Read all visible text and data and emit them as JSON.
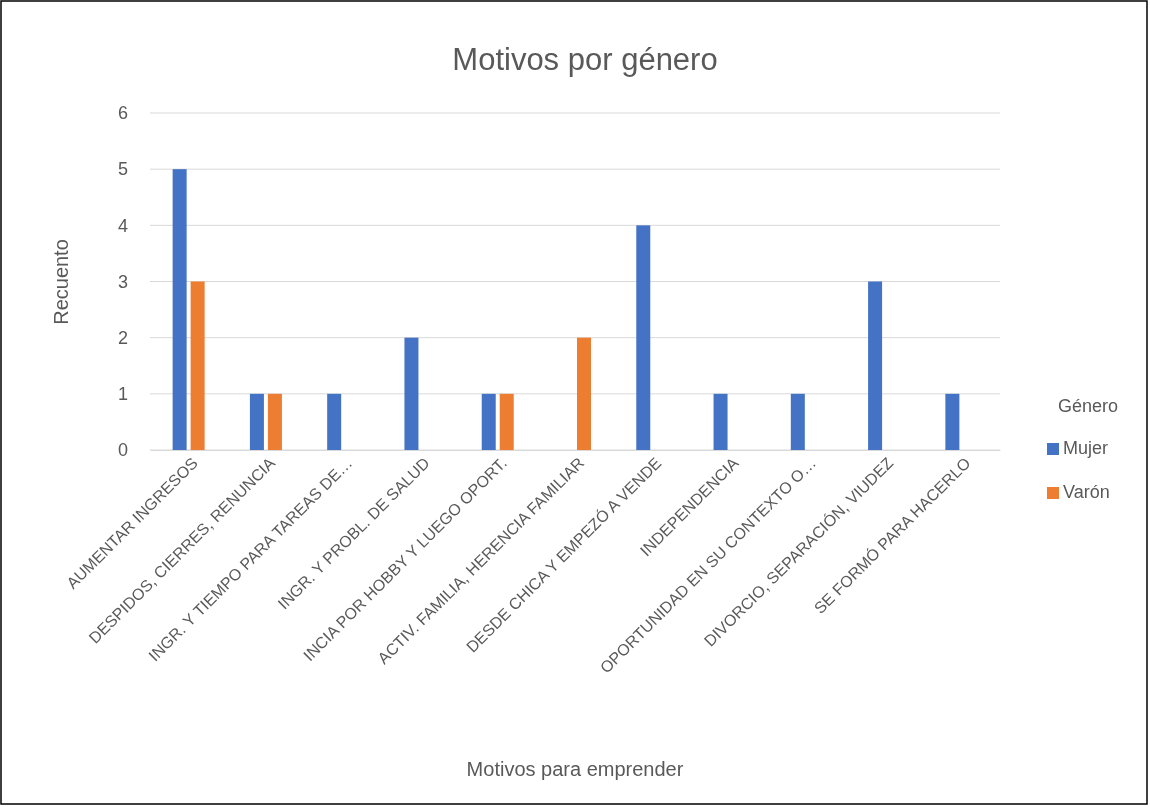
{
  "chart_data": {
    "type": "bar",
    "title": "Motivos por género",
    "xlabel": "Motivos para emprender",
    "ylabel": "Recuento",
    "legend_title": "Género",
    "categories": [
      "AUMENTAR INGRESOS",
      "DESPIDOS, CIERRES, RENUNCIA",
      "INGR. Y TIEMPO PARA TAREAS DE…",
      "INGR. Y PROBL. DE SALUD",
      "INCIA POR HOBBY Y LUEGO OPORT.",
      "ACTIV. FAMILIA, HERENCIA FAMILIAR",
      "DESDE CHICA Y EMPEZÓ A VENDE",
      "INDEPENDENCIA",
      "OPORTUNIDAD EN SU CONTEXTO O…",
      "DIVORCIO, SEPARACIÓN, VIUDEZ",
      "SE FORMÓ PARA HACERLO"
    ],
    "series": [
      {
        "name": "Mujer",
        "color": "#4472c4",
        "values": [
          5,
          1,
          1,
          2,
          1,
          null,
          4,
          1,
          1,
          3,
          1
        ]
      },
      {
        "name": "Varón",
        "color": "#ed7d31",
        "values": [
          3,
          1,
          null,
          null,
          1,
          2,
          null,
          null,
          null,
          null,
          null
        ]
      }
    ],
    "ylim": [
      0,
      6
    ],
    "yticks": [
      0,
      1,
      2,
      3,
      4,
      5,
      6
    ],
    "grid": "y",
    "legend": "right"
  }
}
